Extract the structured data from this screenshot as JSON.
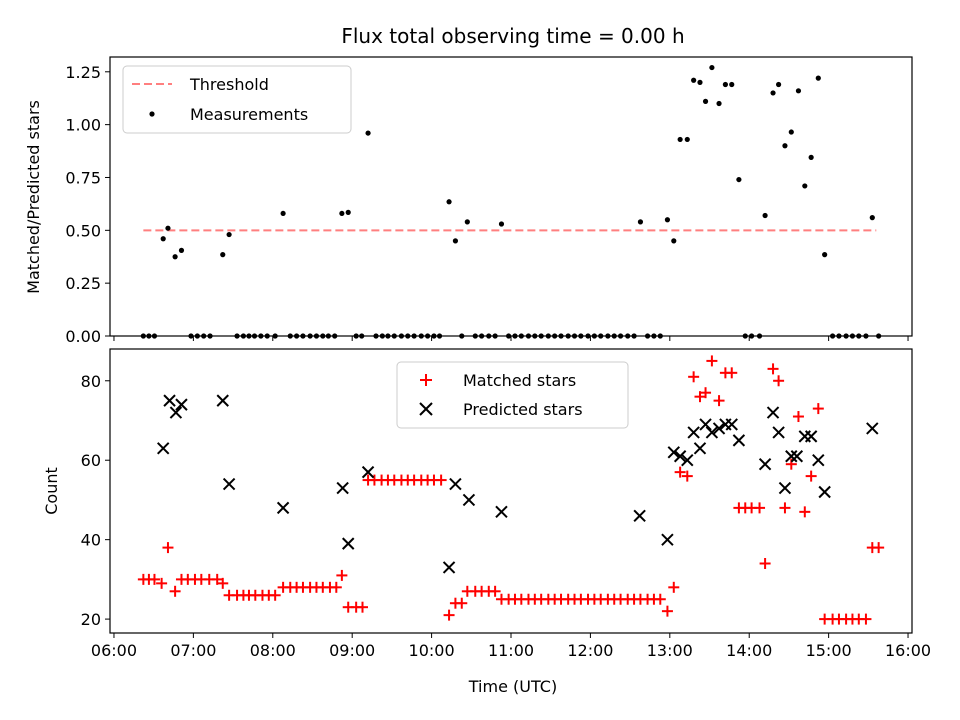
{
  "figure": {
    "title": "Flux total observing time = 0.00 h",
    "xlabel": "Time (UTC)",
    "xticks": [
      "06:00",
      "07:00",
      "08:00",
      "09:00",
      "10:00",
      "11:00",
      "12:00",
      "13:00",
      "14:00",
      "15:00",
      "16:00"
    ]
  },
  "chart_data": [
    {
      "type": "scatter",
      "ylabel": "Matched/Predicted stars",
      "xlim": [
        5.95,
        16.05
      ],
      "ylim": [
        0,
        1.32
      ],
      "yticks": [
        "0.00",
        "0.25",
        "0.50",
        "0.75",
        "1.00",
        "1.25"
      ],
      "legend_position": "top-left",
      "threshold": {
        "name": "Threshold",
        "value": 0.5,
        "x_start": 6.37,
        "x_end": 15.6,
        "color": "#ff7f7f"
      },
      "measurements": {
        "name": "Measurements",
        "color": "#000000",
        "points": [
          [
            6.37,
            0
          ],
          [
            6.44,
            0
          ],
          [
            6.51,
            0
          ],
          [
            6.62,
            0.46
          ],
          [
            6.68,
            0.51
          ],
          [
            6.77,
            0.375
          ],
          [
            6.85,
            0.405
          ],
          [
            6.97,
            0
          ],
          [
            7.05,
            0
          ],
          [
            7.13,
            0
          ],
          [
            7.21,
            0
          ],
          [
            7.37,
            0.385
          ],
          [
            7.45,
            0.48
          ],
          [
            7.55,
            0
          ],
          [
            7.63,
            0
          ],
          [
            7.7,
            0
          ],
          [
            7.77,
            0
          ],
          [
            7.85,
            0
          ],
          [
            7.93,
            0
          ],
          [
            8.03,
            0
          ],
          [
            8.13,
            0.58
          ],
          [
            8.22,
            0
          ],
          [
            8.3,
            0
          ],
          [
            8.38,
            0
          ],
          [
            8.47,
            0
          ],
          [
            8.55,
            0
          ],
          [
            8.63,
            0
          ],
          [
            8.7,
            0
          ],
          [
            8.78,
            0
          ],
          [
            8.87,
            0.58
          ],
          [
            8.95,
            0.585
          ],
          [
            9.05,
            0
          ],
          [
            9.12,
            0
          ],
          [
            9.2,
            0.96
          ],
          [
            9.3,
            0
          ],
          [
            9.38,
            0
          ],
          [
            9.45,
            0
          ],
          [
            9.53,
            0
          ],
          [
            9.62,
            0
          ],
          [
            9.7,
            0
          ],
          [
            9.78,
            0
          ],
          [
            9.87,
            0
          ],
          [
            9.95,
            0
          ],
          [
            10.03,
            0
          ],
          [
            10.1,
            0
          ],
          [
            10.22,
            0.635
          ],
          [
            10.3,
            0.45
          ],
          [
            10.38,
            0
          ],
          [
            10.45,
            0.54
          ],
          [
            10.55,
            0
          ],
          [
            10.63,
            0
          ],
          [
            10.72,
            0
          ],
          [
            10.8,
            0
          ],
          [
            10.88,
            0.53
          ],
          [
            10.97,
            0
          ],
          [
            11.05,
            0
          ],
          [
            11.13,
            0
          ],
          [
            11.22,
            0
          ],
          [
            11.3,
            0
          ],
          [
            11.38,
            0
          ],
          [
            11.47,
            0
          ],
          [
            11.55,
            0
          ],
          [
            11.63,
            0
          ],
          [
            11.72,
            0
          ],
          [
            11.8,
            0
          ],
          [
            11.88,
            0
          ],
          [
            11.97,
            0
          ],
          [
            12.05,
            0
          ],
          [
            12.13,
            0
          ],
          [
            12.22,
            0
          ],
          [
            12.3,
            0
          ],
          [
            12.38,
            0
          ],
          [
            12.47,
            0
          ],
          [
            12.55,
            0
          ],
          [
            12.63,
            0.54
          ],
          [
            12.72,
            0
          ],
          [
            12.8,
            0
          ],
          [
            12.88,
            0
          ],
          [
            12.97,
            0.55
          ],
          [
            13.05,
            0.45
          ],
          [
            13.13,
            0.93
          ],
          [
            13.22,
            0.93
          ],
          [
            13.3,
            1.21
          ],
          [
            13.38,
            1.2
          ],
          [
            13.45,
            1.11
          ],
          [
            13.53,
            1.27
          ],
          [
            13.62,
            1.1
          ],
          [
            13.7,
            1.19
          ],
          [
            13.78,
            1.19
          ],
          [
            13.87,
            0.74
          ],
          [
            13.95,
            0
          ],
          [
            14.03,
            0
          ],
          [
            14.13,
            0
          ],
          [
            14.2,
            0.57
          ],
          [
            14.3,
            1.15
          ],
          [
            14.37,
            1.19
          ],
          [
            14.45,
            0.9
          ],
          [
            14.53,
            0.965
          ],
          [
            14.62,
            1.16
          ],
          [
            14.7,
            0.71
          ],
          [
            14.78,
            0.845
          ],
          [
            14.87,
            1.22
          ],
          [
            14.95,
            0.385
          ],
          [
            15.05,
            0
          ],
          [
            15.13,
            0
          ],
          [
            15.22,
            0
          ],
          [
            15.3,
            0
          ],
          [
            15.38,
            0
          ],
          [
            15.47,
            0
          ],
          [
            15.55,
            0.56
          ],
          [
            15.63,
            0
          ]
        ]
      }
    },
    {
      "type": "scatter",
      "ylabel": "Count",
      "xlim": [
        5.95,
        16.05
      ],
      "ylim": [
        16.5,
        88
      ],
      "yticks": [
        20,
        40,
        60,
        80
      ],
      "legend_position": "top-center",
      "series": [
        {
          "name": "Matched stars",
          "marker": "+",
          "color": "#ff0000",
          "points": [
            [
              6.37,
              30
            ],
            [
              6.44,
              30
            ],
            [
              6.51,
              30
            ],
            [
              6.6,
              29
            ],
            [
              6.68,
              38
            ],
            [
              6.77,
              27
            ],
            [
              6.85,
              30
            ],
            [
              6.93,
              30
            ],
            [
              7.02,
              30
            ],
            [
              7.1,
              30
            ],
            [
              7.2,
              30
            ],
            [
              7.3,
              30
            ],
            [
              7.37,
              29
            ],
            [
              7.45,
              26
            ],
            [
              7.55,
              26
            ],
            [
              7.63,
              26
            ],
            [
              7.7,
              26
            ],
            [
              7.78,
              26
            ],
            [
              7.87,
              26
            ],
            [
              7.95,
              26
            ],
            [
              8.03,
              26
            ],
            [
              8.13,
              28
            ],
            [
              8.22,
              28
            ],
            [
              8.3,
              28
            ],
            [
              8.38,
              28
            ],
            [
              8.47,
              28
            ],
            [
              8.55,
              28
            ],
            [
              8.63,
              28
            ],
            [
              8.72,
              28
            ],
            [
              8.8,
              28
            ],
            [
              8.87,
              31
            ],
            [
              8.95,
              23
            ],
            [
              9.05,
              23
            ],
            [
              9.13,
              23
            ],
            [
              9.2,
              55
            ],
            [
              9.28,
              55
            ],
            [
              9.37,
              55
            ],
            [
              9.45,
              55
            ],
            [
              9.53,
              55
            ],
            [
              9.62,
              55
            ],
            [
              9.7,
              55
            ],
            [
              9.78,
              55
            ],
            [
              9.87,
              55
            ],
            [
              9.95,
              55
            ],
            [
              10.03,
              55
            ],
            [
              10.12,
              55
            ],
            [
              10.22,
              21
            ],
            [
              10.3,
              24
            ],
            [
              10.38,
              24
            ],
            [
              10.45,
              27
            ],
            [
              10.55,
              27
            ],
            [
              10.63,
              27
            ],
            [
              10.72,
              27
            ],
            [
              10.8,
              27
            ],
            [
              10.88,
              25
            ],
            [
              10.97,
              25
            ],
            [
              11.05,
              25
            ],
            [
              11.13,
              25
            ],
            [
              11.22,
              25
            ],
            [
              11.3,
              25
            ],
            [
              11.38,
              25
            ],
            [
              11.47,
              25
            ],
            [
              11.55,
              25
            ],
            [
              11.63,
              25
            ],
            [
              11.72,
              25
            ],
            [
              11.8,
              25
            ],
            [
              11.88,
              25
            ],
            [
              11.97,
              25
            ],
            [
              12.05,
              25
            ],
            [
              12.13,
              25
            ],
            [
              12.22,
              25
            ],
            [
              12.3,
              25
            ],
            [
              12.38,
              25
            ],
            [
              12.47,
              25
            ],
            [
              12.55,
              25
            ],
            [
              12.63,
              25
            ],
            [
              12.72,
              25
            ],
            [
              12.8,
              25
            ],
            [
              12.88,
              25
            ],
            [
              12.97,
              22
            ],
            [
              13.05,
              28
            ],
            [
              13.13,
              57
            ],
            [
              13.22,
              56
            ],
            [
              13.3,
              81
            ],
            [
              13.38,
              76
            ],
            [
              13.45,
              77
            ],
            [
              13.53,
              85
            ],
            [
              13.62,
              75
            ],
            [
              13.7,
              82
            ],
            [
              13.78,
              82
            ],
            [
              13.87,
              48
            ],
            [
              13.95,
              48
            ],
            [
              14.03,
              48
            ],
            [
              14.13,
              48
            ],
            [
              14.2,
              34
            ],
            [
              14.3,
              83
            ],
            [
              14.37,
              80
            ],
            [
              14.45,
              48
            ],
            [
              14.53,
              59
            ],
            [
              14.62,
              71
            ],
            [
              14.7,
              47
            ],
            [
              14.78,
              56
            ],
            [
              14.87,
              73
            ],
            [
              14.95,
              20
            ],
            [
              15.05,
              20
            ],
            [
              15.13,
              20
            ],
            [
              15.22,
              20
            ],
            [
              15.3,
              20
            ],
            [
              15.38,
              20
            ],
            [
              15.47,
              20
            ],
            [
              15.55,
              38
            ],
            [
              15.63,
              38
            ]
          ]
        },
        {
          "name": "Predicted stars",
          "marker": "x",
          "color": "#000000",
          "points": [
            [
              6.62,
              63
            ],
            [
              6.7,
              75
            ],
            [
              6.78,
              72
            ],
            [
              6.85,
              74
            ],
            [
              7.37,
              75
            ],
            [
              7.45,
              54
            ],
            [
              8.13,
              48
            ],
            [
              8.88,
              53
            ],
            [
              8.95,
              39
            ],
            [
              9.2,
              57
            ],
            [
              10.22,
              33
            ],
            [
              10.3,
              54
            ],
            [
              10.47,
              50
            ],
            [
              10.88,
              47
            ],
            [
              12.62,
              46
            ],
            [
              12.97,
              40
            ],
            [
              13.05,
              62
            ],
            [
              13.13,
              61
            ],
            [
              13.22,
              60
            ],
            [
              13.3,
              67
            ],
            [
              13.38,
              63
            ],
            [
              13.45,
              69
            ],
            [
              13.53,
              67
            ],
            [
              13.62,
              68
            ],
            [
              13.7,
              69
            ],
            [
              13.78,
              69
            ],
            [
              13.87,
              65
            ],
            [
              14.2,
              59
            ],
            [
              14.3,
              72
            ],
            [
              14.37,
              67
            ],
            [
              14.45,
              53
            ],
            [
              14.53,
              61
            ],
            [
              14.6,
              61
            ],
            [
              14.7,
              66
            ],
            [
              14.78,
              66
            ],
            [
              14.87,
              60
            ],
            [
              14.95,
              52
            ],
            [
              15.55,
              68
            ]
          ]
        }
      ]
    }
  ]
}
